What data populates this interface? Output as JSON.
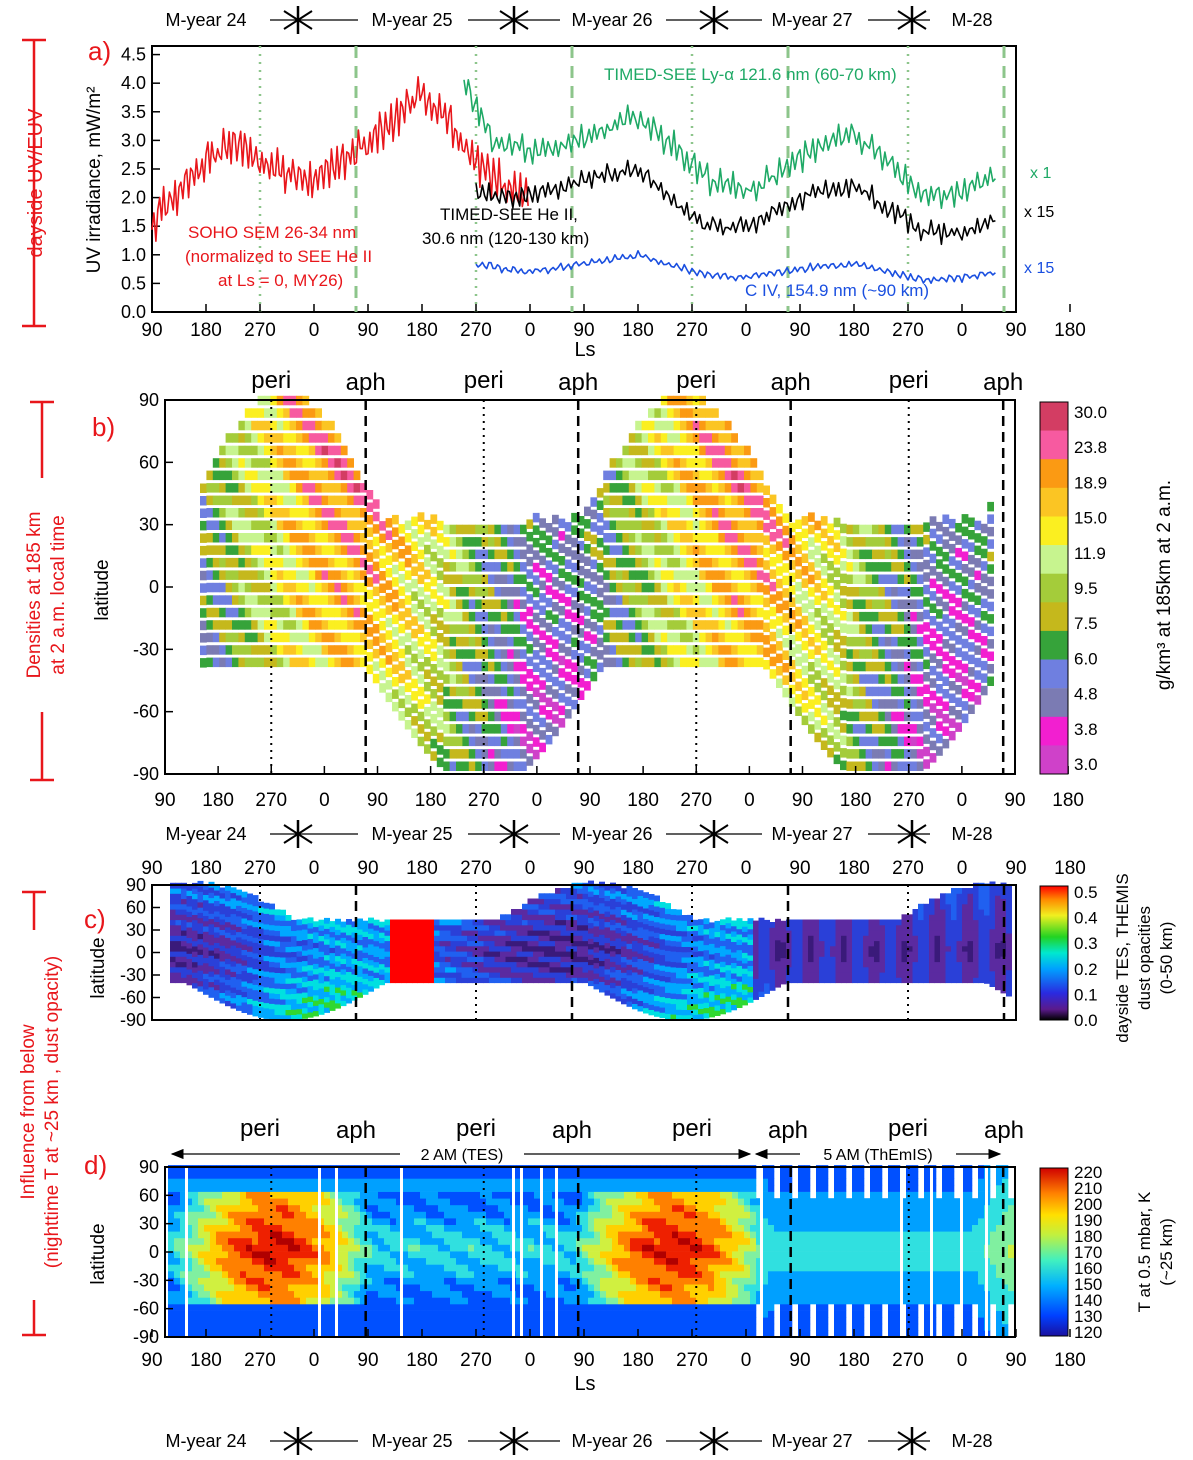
{
  "mars_years": {
    "labels": [
      "M-year 24",
      "M-year 25",
      "M-year 26",
      "M-year 27",
      "M-28"
    ]
  },
  "ls_ticks": [
    "90",
    "180",
    "270",
    "0",
    "90",
    "180",
    "270",
    "0",
    "90",
    "180",
    "270",
    "0",
    "90",
    "180",
    "270",
    "0",
    "90",
    "180"
  ],
  "ls_axis_label": "Ls",
  "season_labels": {
    "peri": "peri",
    "aph": "aph"
  },
  "colors": {
    "sem": "#e8161b",
    "lya": "#1fa966",
    "heii": "#000000",
    "civ": "#1a4fe0",
    "panel_label": "#e8161b",
    "grid_green": "#8dc58b",
    "dotted": "#000000"
  },
  "panels": {
    "a": {
      "letter": "a)",
      "side_label": "dayside UV/EUV",
      "ylabel": "UV irradiance, mW/m²",
      "yticks": [
        "4.5",
        "4.0",
        "3.5",
        "3.0",
        "2.5",
        "2.0",
        "1.5",
        "1.0",
        "0.5",
        "0.0"
      ],
      "annotations": {
        "sem": [
          "SOHO SEM 26-34 nm",
          "(normalized to SEE He II",
          "at Ls = 0, MY26)"
        ],
        "heii": [
          "TIMED-SEE He II,",
          "30.6 nm (120-130 km)"
        ],
        "lya": "TIMED-SEE Ly-α 121.6 nm (60-70 km)",
        "civ": "C IV, 154.9 nm (~90 km)",
        "mult_lya": "x 1",
        "mult_heii": "x 15",
        "mult_civ": "x 15"
      }
    },
    "b": {
      "letter": "b)",
      "side_label": [
        "Densities at 185 km",
        "at 2 a.m. local time"
      ],
      "ylabel": "latitude",
      "colorbar_label": "g/km³ at 185km at 2 a.m.",
      "colorbar_ticks": [
        "30.0",
        "23.8",
        "18.9",
        "15.0",
        "11.9",
        "9.5",
        "7.5",
        "6.0",
        "4.8",
        "3.8",
        "3.0"
      ],
      "colorbar_colors": [
        "#d33d63",
        "#f75aa0",
        "#fb9a13",
        "#fbc523",
        "#fbef20",
        "#c7f48f",
        "#a4cc3a",
        "#c5b81c",
        "#36a33a",
        "#6f7fe0",
        "#7b7bb3",
        "#f21fd0",
        "#cf41c9"
      ]
    },
    "c": {
      "letter": "c)",
      "side_label": [
        "Influence from below",
        "(nighttime T at ~25 km , dust opacity)"
      ],
      "ylabel": "latitude",
      "colorbar_label": [
        "dayside TES, THEMIS",
        "dust opacities",
        "(0-50 km)"
      ],
      "colorbar_ticks": [
        "0.5",
        "0.4",
        "0.3",
        "0.2",
        "0.1",
        "0.0"
      ]
    },
    "d": {
      "letter": "d)",
      "ylabel": "latitude",
      "colorbar_label": [
        "T at 0.5 mbar, K",
        "(~25 km)"
      ],
      "colorbar_ticks": [
        "220",
        "210",
        "200",
        "190",
        "180",
        "170",
        "160",
        "150",
        "140",
        "130",
        "120"
      ],
      "range_labels": [
        "2 AM (TES)",
        "5 AM (ThEmIS)"
      ]
    }
  },
  "lat_ticks": [
    "90",
    "60",
    "30",
    "0",
    "-30",
    "-60",
    "-90"
  ],
  "chart_data": [
    {
      "type": "line",
      "title": "",
      "xlabel": "Ls",
      "ylabel": "UV irradiance, mW/m²",
      "ylim": [
        0,
        4.5
      ],
      "x_axis": "Ls cumulative across Mars years 24-28",
      "series": [
        {
          "name": "SOHO SEM 26-34 nm",
          "color": "#e8161b",
          "x": [
            90,
            135,
            180,
            225,
            270,
            315,
            360,
            405,
            450,
            495,
            540,
            585,
            630,
            675,
            720
          ],
          "y": [
            1.6,
            2.1,
            2.6,
            3.0,
            2.6,
            2.4,
            2.3,
            2.6,
            2.9,
            3.4,
            3.8,
            3.3,
            2.6,
            2.2,
            2.0
          ]
        },
        {
          "name": "TIMED-SEE Ly-α 121.6 nm (60-70 km)",
          "color": "#1fa966",
          "x": [
            610,
            660,
            720,
            780,
            840,
            900,
            960,
            1020,
            1080,
            1140,
            1200,
            1260,
            1320,
            1380,
            1440,
            1500
          ],
          "y": [
            4.0,
            3.0,
            2.8,
            2.9,
            3.2,
            3.4,
            2.9,
            2.3,
            2.1,
            2.5,
            2.9,
            3.1,
            2.6,
            2.0,
            2.1,
            2.4
          ]
        },
        {
          "name": "TIMED-SEE He II, 30.6 nm (120-130 km)",
          "color": "#000000",
          "x": [
            630,
            680,
            720,
            780,
            840,
            900,
            960,
            1020,
            1080,
            1140,
            1200,
            1260,
            1320,
            1380,
            1440,
            1500
          ],
          "y": [
            2.1,
            2.0,
            2.0,
            2.2,
            2.4,
            2.5,
            1.9,
            1.5,
            1.5,
            1.8,
            2.1,
            2.2,
            1.8,
            1.4,
            1.4,
            1.6
          ]
        },
        {
          "name": "C IV, 154.9 nm (~90 km)",
          "color": "#1a4fe0",
          "x": [
            630,
            680,
            720,
            780,
            840,
            900,
            960,
            1020,
            1080,
            1140,
            1200,
            1260,
            1320,
            1380,
            1440,
            1500
          ],
          "y": [
            0.85,
            0.75,
            0.7,
            0.8,
            0.9,
            1.0,
            0.8,
            0.65,
            0.6,
            0.7,
            0.8,
            0.85,
            0.7,
            0.55,
            0.6,
            0.7
          ]
        }
      ]
    },
    {
      "type": "heatmap",
      "title": "",
      "ylabel": "latitude",
      "ylim": [
        -90,
        90
      ],
      "colorbar_label": "g/km³ at 185km at 2 a.m.",
      "colorbar_range": [
        3.0,
        30.0
      ]
    },
    {
      "type": "heatmap",
      "title": "",
      "ylabel": "latitude",
      "ylim": [
        -90,
        90
      ],
      "colorbar_label": "dayside TES, THEMIS dust opacities (0-50 km)",
      "colorbar_range": [
        0.0,
        0.5
      ]
    },
    {
      "type": "heatmap",
      "title": "",
      "xlabel": "Ls",
      "ylabel": "latitude",
      "ylim": [
        -90,
        90
      ],
      "colorbar_label": "T at 0.5 mbar, K (~25 km)",
      "colorbar_range": [
        120,
        220
      ]
    }
  ]
}
